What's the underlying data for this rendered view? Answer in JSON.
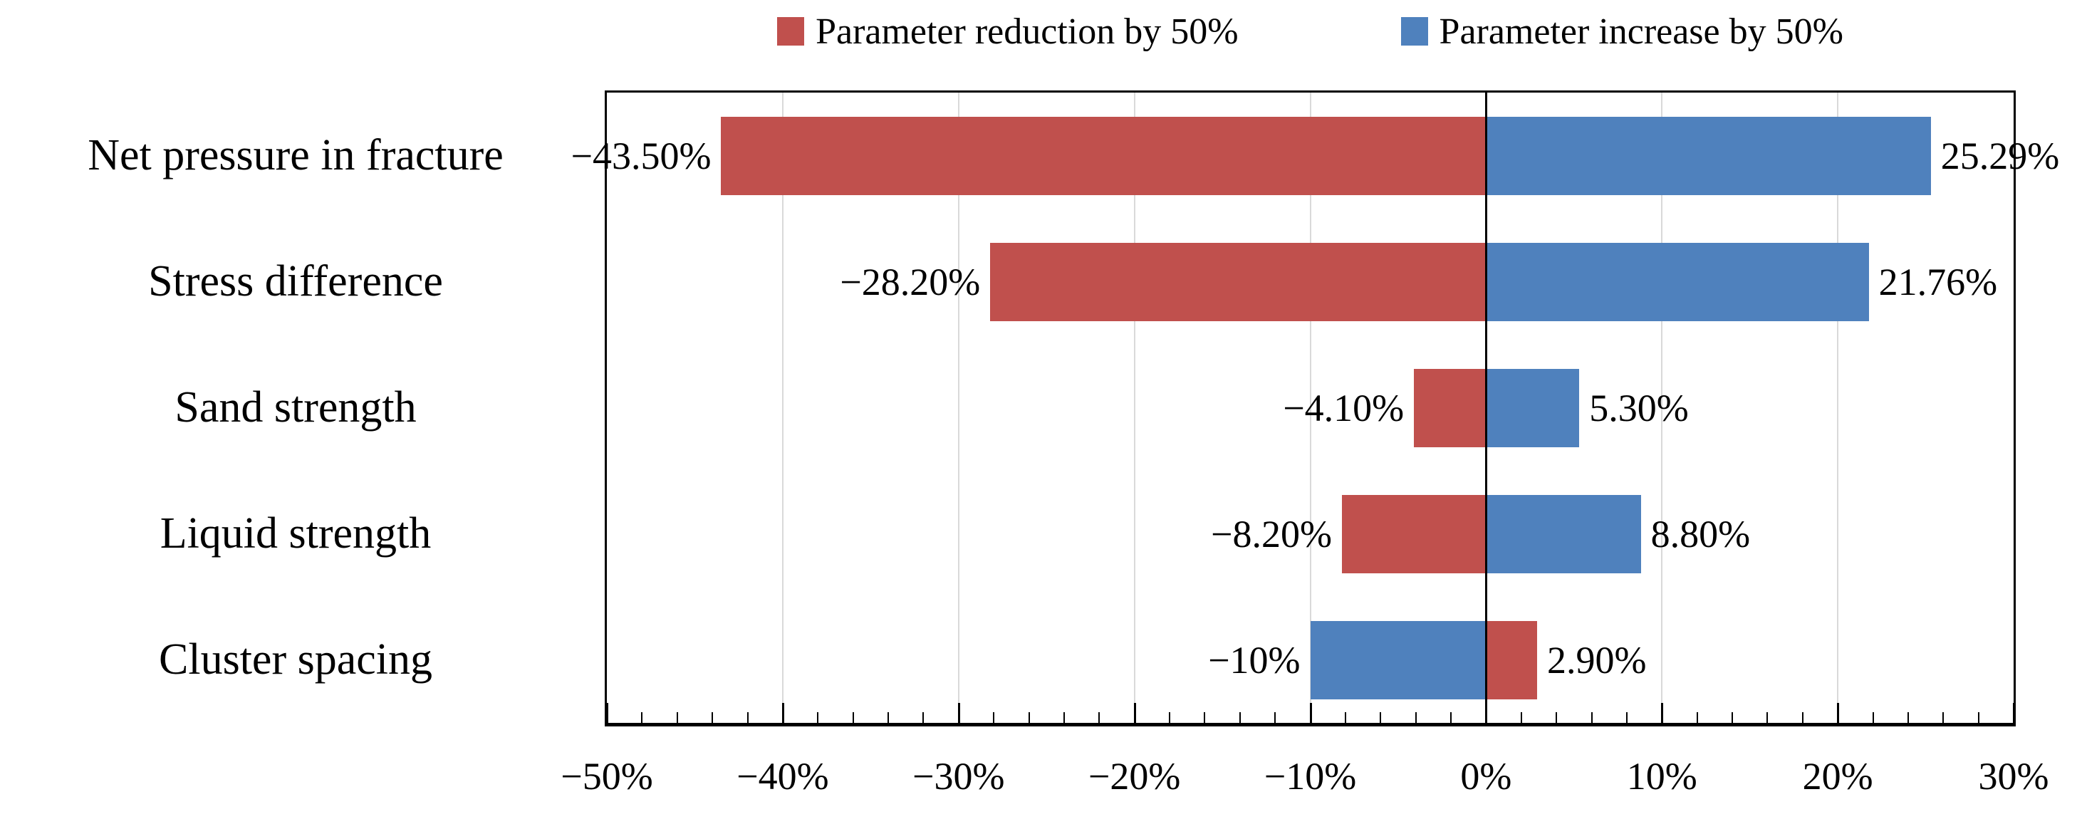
{
  "legend": {
    "items": [
      {
        "label": "Parameter reduction by 50%",
        "color": "#c0504d"
      },
      {
        "label": "Parameter increase by 50%",
        "color": "#4f81bd"
      }
    ]
  },
  "chart_data": {
    "type": "bar",
    "orientation": "horizontal",
    "subtype": "tornado",
    "title": "",
    "xlabel": "",
    "ylabel": "",
    "categories": [
      "Net pressure in fracture",
      "Stress difference",
      "Sand strength",
      "Liquid strength",
      "Cluster spacing"
    ],
    "series": [
      {
        "name": "Parameter reduction by 50%",
        "color": "#c0504d",
        "values": [
          -43.5,
          -28.2,
          -4.1,
          -8.2,
          2.9
        ],
        "value_labels": [
          "−43.50%",
          "−28.20%",
          "−4.10%",
          "−8.20%",
          "2.90%"
        ]
      },
      {
        "name": "Parameter increase by 50%",
        "color": "#4f81bd",
        "values": [
          25.29,
          21.76,
          5.3,
          8.8,
          -10
        ],
        "value_labels": [
          "25.29%",
          "21.76%",
          "5.30%",
          "8.80%",
          "−10%"
        ]
      }
    ],
    "xlim": [
      -50,
      30
    ],
    "x_tick_step_major": 10,
    "x_tick_step_minor": 2,
    "x_tick_values": [
      -50,
      -40,
      -30,
      -20,
      -10,
      0,
      10,
      20,
      30
    ],
    "x_tick_labels": [
      "−50%",
      "−40%",
      "−30%",
      "−20%",
      "−10%",
      "0%",
      "10%",
      "20%",
      "30%"
    ],
    "grid": "vertical-major",
    "grid_color": "#d9d9d9",
    "zero_line": true,
    "legend_position": "top"
  },
  "colors": {
    "reduction": "#c0504d",
    "increase": "#4f81bd",
    "grid": "#d9d9d9",
    "axis": "#000000",
    "background": "#ffffff"
  }
}
